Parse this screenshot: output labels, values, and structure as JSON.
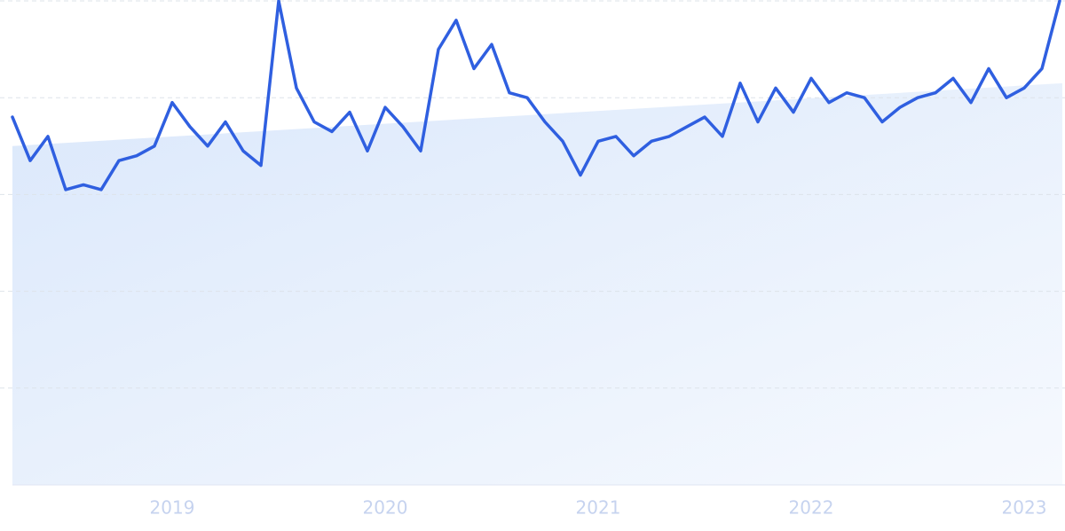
{
  "chart_data": {
    "type": "line",
    "categories": [
      null,
      null,
      null,
      null,
      null,
      null,
      null,
      null,
      null,
      "2019",
      null,
      null,
      null,
      null,
      null,
      null,
      null,
      null,
      null,
      null,
      null,
      "2020",
      null,
      null,
      null,
      null,
      null,
      null,
      null,
      null,
      null,
      null,
      null,
      "2021",
      null,
      null,
      null,
      null,
      null,
      null,
      null,
      null,
      null,
      null,
      null,
      "2022",
      null,
      null,
      null,
      null,
      null,
      null,
      null,
      null,
      null,
      null,
      null,
      "2023",
      null,
      null
    ],
    "values": [
      76,
      67,
      72,
      61,
      62,
      61,
      67,
      68,
      70,
      79,
      74,
      70,
      75,
      69,
      66,
      100,
      82,
      75,
      73,
      77,
      69,
      78,
      74,
      69,
      90,
      96,
      86,
      91,
      81,
      80,
      75,
      71,
      64,
      71,
      72,
      68,
      71,
      72,
      74,
      76,
      72,
      83,
      75,
      82,
      77,
      84,
      79,
      81,
      80,
      75,
      78,
      80,
      81,
      84,
      79,
      86,
      80,
      82,
      86,
      100
    ],
    "color": "#2f5fe0",
    "trend": [
      70,
      83
    ],
    "trend_color": "#dbe8fb",
    "ylim": [
      0,
      100
    ],
    "yticks": [
      0,
      20,
      40,
      60,
      80,
      100
    ],
    "grid": true
  }
}
